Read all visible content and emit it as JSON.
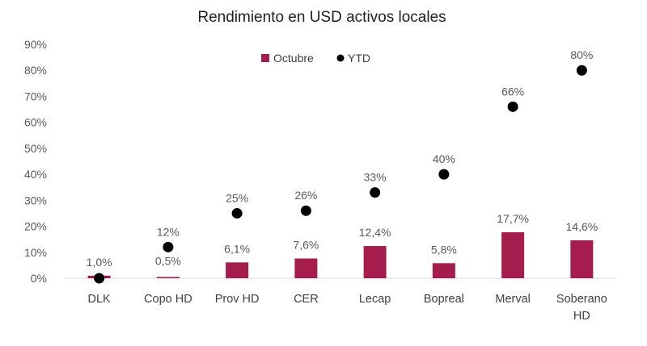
{
  "chart_data": {
    "type": "bar",
    "title": "Rendimiento en USD activos locales",
    "xlabel": "",
    "ylabel": "",
    "categories": [
      "DLK",
      "Copo HD",
      "Prov HD",
      "CER",
      "Lecap",
      "Bopreal",
      "Merval",
      "Soberano HD"
    ],
    "y_ticks": [
      "0%",
      "10%",
      "20%",
      "30%",
      "40%",
      "50%",
      "60%",
      "70%",
      "80%",
      "90%"
    ],
    "ylim": [
      0,
      90
    ],
    "grid": false,
    "legend_position": "top-center",
    "series": [
      {
        "name": "Octubre",
        "kind": "bar",
        "color": "#a51d4c",
        "values": [
          1.0,
          0.5,
          6.1,
          7.6,
          12.4,
          5.8,
          17.7,
          14.6
        ],
        "labels": [
          "1,0%",
          "0,5%",
          "6,1%",
          "7,6%",
          "12,4%",
          "5,8%",
          "17,7%",
          "14,6%"
        ]
      },
      {
        "name": "YTD",
        "kind": "scatter",
        "color": "#000000",
        "values": [
          0,
          12,
          25,
          26,
          33,
          40,
          66,
          80
        ],
        "labels": [
          "",
          "12%",
          "25%",
          "26%",
          "33%",
          "40%",
          "66%",
          "80%"
        ]
      }
    ]
  }
}
